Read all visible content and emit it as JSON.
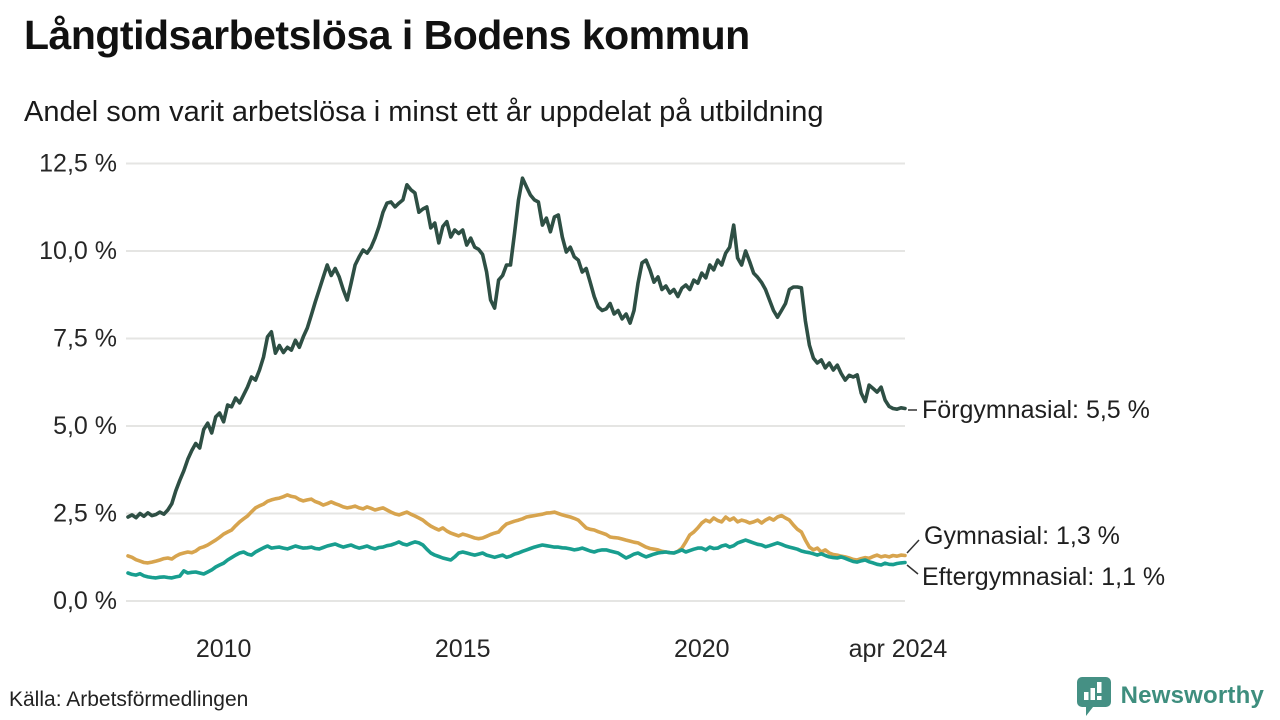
{
  "chart_data": {
    "type": "line",
    "title": "Långtidsarbetslösa i Bodens kommun",
    "subtitle": "Andel som varit arbetslösa i minst ett år uppdelat på utbildning",
    "grid": true,
    "legend_position": "right-end-labels",
    "y_axis": {
      "unit": "%",
      "min": 0,
      "max": 12.5,
      "ticks": [
        {
          "value": 0,
          "label": "0,0 %"
        },
        {
          "value": 2.5,
          "label": "2,5 %"
        },
        {
          "value": 5,
          "label": "5,0 %"
        },
        {
          "value": 7.5,
          "label": "7,5 %"
        },
        {
          "value": 10,
          "label": "10,0 %"
        },
        {
          "value": 12.5,
          "label": "12,5 %"
        }
      ]
    },
    "x_axis": {
      "start": "2008-01",
      "end": "2024-04",
      "months_total": 196,
      "ticks": [
        {
          "month_index": 24,
          "label": "2010"
        },
        {
          "month_index": 84,
          "label": "2015"
        },
        {
          "month_index": 144,
          "label": "2020"
        },
        {
          "month_index": 195,
          "label": "apr 2024"
        }
      ]
    },
    "series": [
      {
        "name": "Förgymnasial",
        "end_label": "Förgymnasial: 5,5 %",
        "end_value": 5.5,
        "color": "#2E4F44",
        "values": [
          2.4,
          2.46,
          2.38,
          2.5,
          2.42,
          2.52,
          2.44,
          2.47,
          2.54,
          2.48,
          2.6,
          2.78,
          3.15,
          3.45,
          3.72,
          4.05,
          4.3,
          4.5,
          4.37,
          4.9,
          5.08,
          4.8,
          5.26,
          5.37,
          5.12,
          5.6,
          5.55,
          5.8,
          5.66,
          5.89,
          6.11,
          6.4,
          6.31,
          6.6,
          6.97,
          7.55,
          7.69,
          7.08,
          7.3,
          7.1,
          7.25,
          7.17,
          7.45,
          7.25,
          7.55,
          7.8,
          8.17,
          8.55,
          8.9,
          9.25,
          9.6,
          9.3,
          9.5,
          9.26,
          8.9,
          8.6,
          9.08,
          9.6,
          9.83,
          10.03,
          9.94,
          10.11,
          10.37,
          10.7,
          11.11,
          11.37,
          11.4,
          11.26,
          11.37,
          11.46,
          11.89,
          11.75,
          11.66,
          11.11,
          11.2,
          11.26,
          10.66,
          10.8,
          10.23,
          10.7,
          10.84,
          10.4,
          10.6,
          10.5,
          10.6,
          10.17,
          10.37,
          10.11,
          10.05,
          9.9,
          9.4,
          8.6,
          8.37,
          9.17,
          9.3,
          9.6,
          9.6,
          10.5,
          11.46,
          12.08,
          11.83,
          11.6,
          11.46,
          11.4,
          10.74,
          10.94,
          10.55,
          10.97,
          11.03,
          10.4,
          9.97,
          10.11,
          9.83,
          9.74,
          9.4,
          9.5,
          9.11,
          8.7,
          8.4,
          8.3,
          8.35,
          8.5,
          8.2,
          8.3,
          8.06,
          8.2,
          7.94,
          8.3,
          9.08,
          9.66,
          9.74,
          9.46,
          9.11,
          9.26,
          8.9,
          9.0,
          8.8,
          8.9,
          8.7,
          8.94,
          9.03,
          8.9,
          9.17,
          9.08,
          9.37,
          9.23,
          9.6,
          9.46,
          9.74,
          9.6,
          9.94,
          10.11,
          10.74,
          9.8,
          9.6,
          10.0,
          9.7,
          9.37,
          9.25,
          9.1,
          8.9,
          8.6,
          8.3,
          8.11,
          8.3,
          8.5,
          8.9,
          8.97,
          8.97,
          8.95,
          8.0,
          7.31,
          6.94,
          6.8,
          6.89,
          6.66,
          6.8,
          6.6,
          6.74,
          6.5,
          6.31,
          6.45,
          6.4,
          6.46,
          5.94,
          5.7,
          6.17,
          6.07,
          5.97,
          6.11,
          5.74,
          5.56,
          5.5,
          5.48,
          5.52,
          5.5
        ]
      },
      {
        "name": "Gymnasial",
        "end_label": "Gymnasial: 1,3 %",
        "end_value": 1.3,
        "color": "#D7A44E",
        "values": [
          1.29,
          1.25,
          1.18,
          1.14,
          1.1,
          1.09,
          1.11,
          1.14,
          1.17,
          1.21,
          1.23,
          1.2,
          1.28,
          1.34,
          1.37,
          1.4,
          1.38,
          1.43,
          1.51,
          1.55,
          1.6,
          1.67,
          1.74,
          1.82,
          1.91,
          1.97,
          2.03,
          2.15,
          2.26,
          2.35,
          2.43,
          2.55,
          2.66,
          2.72,
          2.77,
          2.85,
          2.89,
          2.92,
          2.94,
          2.98,
          3.03,
          2.99,
          2.97,
          2.9,
          2.86,
          2.89,
          2.91,
          2.84,
          2.8,
          2.74,
          2.78,
          2.83,
          2.78,
          2.74,
          2.69,
          2.66,
          2.68,
          2.71,
          2.66,
          2.63,
          2.69,
          2.65,
          2.6,
          2.63,
          2.66,
          2.6,
          2.54,
          2.49,
          2.46,
          2.5,
          2.54,
          2.48,
          2.43,
          2.37,
          2.31,
          2.22,
          2.14,
          2.08,
          2.03,
          2.09,
          2.0,
          1.94,
          1.9,
          1.86,
          1.91,
          1.88,
          1.84,
          1.8,
          1.78,
          1.8,
          1.85,
          1.9,
          1.94,
          1.97,
          2.1,
          2.2,
          2.24,
          2.28,
          2.31,
          2.35,
          2.4,
          2.42,
          2.44,
          2.46,
          2.48,
          2.51,
          2.52,
          2.54,
          2.5,
          2.46,
          2.43,
          2.4,
          2.36,
          2.31,
          2.2,
          2.09,
          2.05,
          2.03,
          1.98,
          1.94,
          1.9,
          1.83,
          1.81,
          1.8,
          1.77,
          1.74,
          1.71,
          1.68,
          1.66,
          1.6,
          1.54,
          1.5,
          1.48,
          1.46,
          1.42,
          1.4,
          1.38,
          1.37,
          1.42,
          1.51,
          1.69,
          1.89,
          1.97,
          2.09,
          2.23,
          2.31,
          2.26,
          2.37,
          2.3,
          2.26,
          2.4,
          2.31,
          2.37,
          2.26,
          2.31,
          2.28,
          2.23,
          2.26,
          2.31,
          2.23,
          2.31,
          2.37,
          2.31,
          2.4,
          2.44,
          2.37,
          2.31,
          2.17,
          2.05,
          1.97,
          1.74,
          1.54,
          1.46,
          1.51,
          1.4,
          1.46,
          1.37,
          1.33,
          1.31,
          1.28,
          1.26,
          1.23,
          1.19,
          1.17,
          1.21,
          1.24,
          1.22,
          1.27,
          1.31,
          1.26,
          1.29,
          1.26,
          1.3,
          1.28,
          1.31,
          1.3
        ]
      },
      {
        "name": "Eftergymnasial",
        "end_label": "Eftergymnasial: 1,1 %",
        "end_value": 1.1,
        "color": "#189E8F",
        "values": [
          0.8,
          0.76,
          0.74,
          0.78,
          0.72,
          0.69,
          0.67,
          0.66,
          0.68,
          0.69,
          0.67,
          0.66,
          0.69,
          0.71,
          0.86,
          0.8,
          0.82,
          0.83,
          0.8,
          0.77,
          0.83,
          0.89,
          0.97,
          1.03,
          1.08,
          1.17,
          1.24,
          1.31,
          1.37,
          1.4,
          1.34,
          1.31,
          1.4,
          1.46,
          1.52,
          1.57,
          1.51,
          1.53,
          1.54,
          1.51,
          1.49,
          1.53,
          1.57,
          1.54,
          1.51,
          1.52,
          1.54,
          1.5,
          1.49,
          1.53,
          1.57,
          1.6,
          1.63,
          1.58,
          1.54,
          1.57,
          1.6,
          1.55,
          1.51,
          1.54,
          1.57,
          1.52,
          1.49,
          1.53,
          1.54,
          1.58,
          1.6,
          1.64,
          1.69,
          1.63,
          1.6,
          1.65,
          1.69,
          1.66,
          1.6,
          1.48,
          1.37,
          1.31,
          1.27,
          1.23,
          1.2,
          1.17,
          1.26,
          1.37,
          1.4,
          1.37,
          1.34,
          1.31,
          1.34,
          1.37,
          1.31,
          1.28,
          1.25,
          1.28,
          1.31,
          1.25,
          1.28,
          1.34,
          1.37,
          1.42,
          1.46,
          1.5,
          1.54,
          1.57,
          1.6,
          1.58,
          1.56,
          1.54,
          1.54,
          1.52,
          1.51,
          1.49,
          1.46,
          1.48,
          1.51,
          1.47,
          1.43,
          1.4,
          1.44,
          1.46,
          1.46,
          1.43,
          1.4,
          1.37,
          1.3,
          1.23,
          1.28,
          1.34,
          1.37,
          1.31,
          1.26,
          1.3,
          1.34,
          1.37,
          1.39,
          1.4,
          1.38,
          1.37,
          1.41,
          1.46,
          1.4,
          1.44,
          1.48,
          1.51,
          1.51,
          1.46,
          1.54,
          1.5,
          1.51,
          1.57,
          1.6,
          1.54,
          1.58,
          1.66,
          1.7,
          1.74,
          1.7,
          1.66,
          1.62,
          1.6,
          1.55,
          1.58,
          1.62,
          1.66,
          1.62,
          1.57,
          1.54,
          1.51,
          1.48,
          1.43,
          1.4,
          1.38,
          1.35,
          1.31,
          1.35,
          1.3,
          1.26,
          1.24,
          1.23,
          1.26,
          1.22,
          1.17,
          1.13,
          1.11,
          1.15,
          1.17,
          1.12,
          1.09,
          1.05,
          1.03,
          1.08,
          1.05,
          1.04,
          1.07,
          1.09,
          1.1
        ]
      }
    ],
    "colors": {
      "grid": "#E5E5E3",
      "axis_text": "#262626",
      "leader_line": "#333333"
    }
  },
  "footer": {
    "source": "Källa: Arbetsförmedlingen",
    "brand": "Newsworthy",
    "brand_color": "#3E8E7E"
  }
}
